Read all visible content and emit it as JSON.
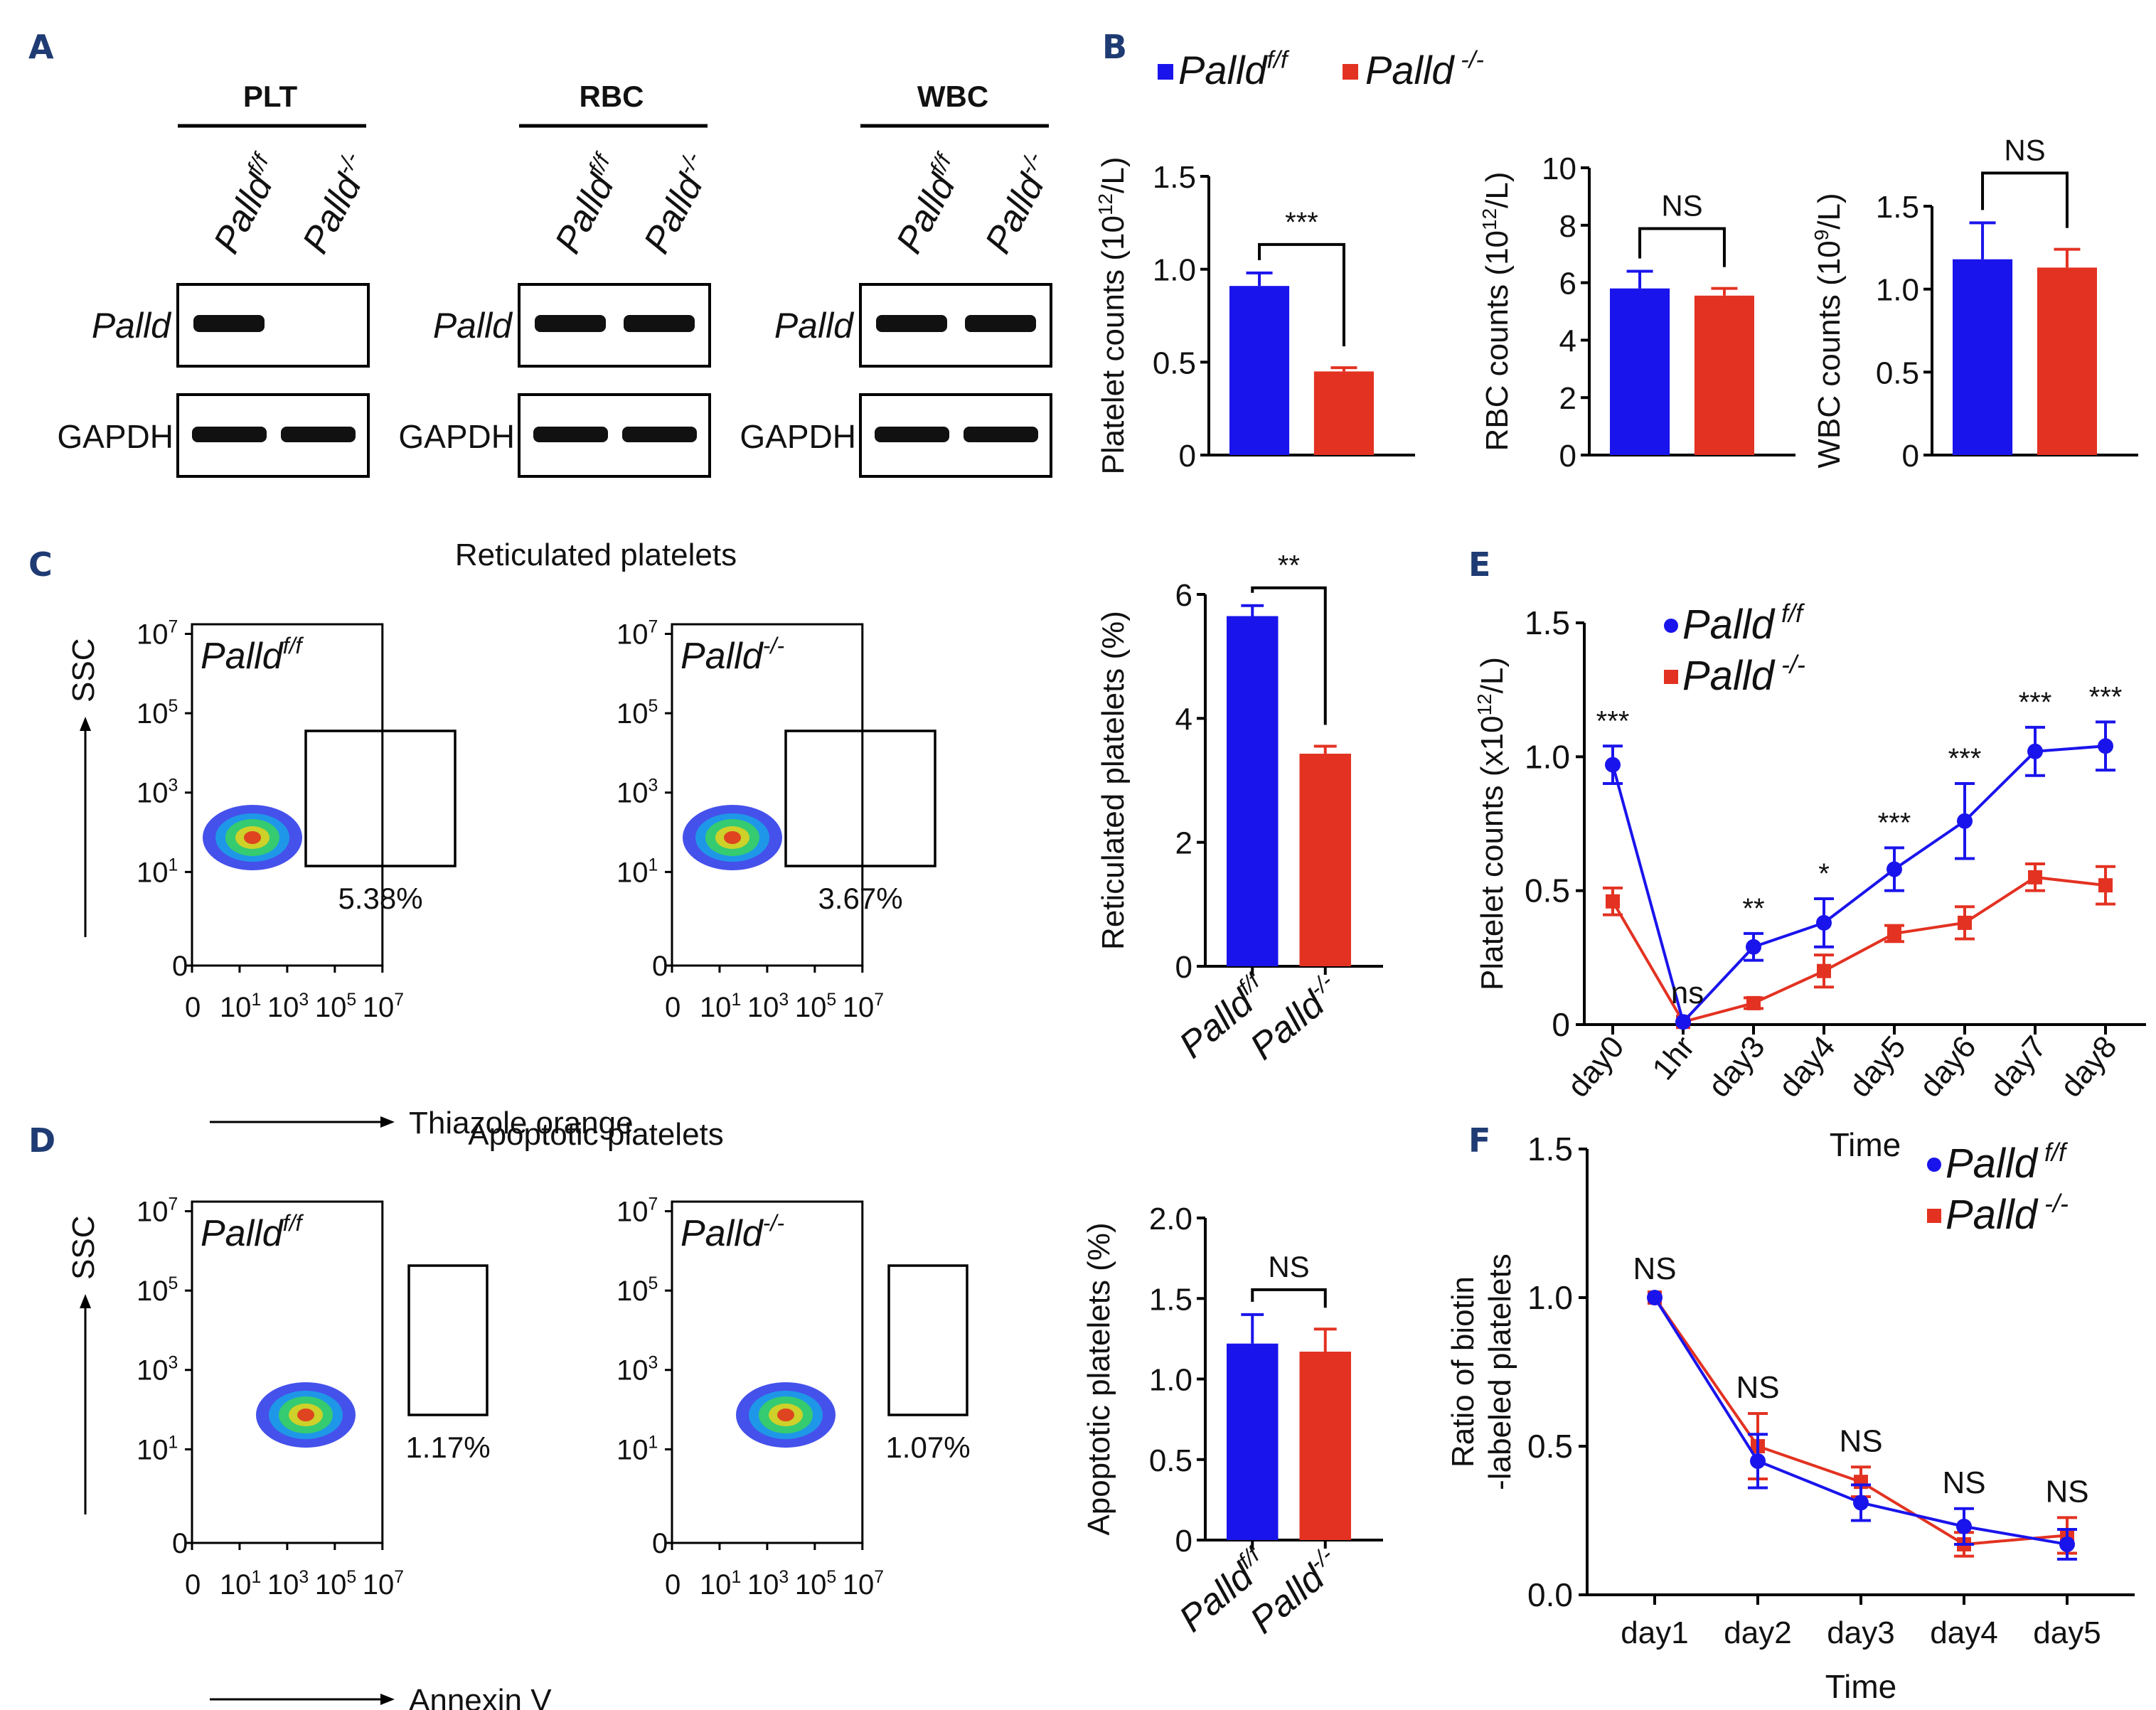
{
  "colors": {
    "palld_ff": "#1a14ec",
    "palld_ko": "#e33222",
    "panel_letter": "#1f3b73",
    "ink": "#111111"
  },
  "panels": {
    "A": {
      "letter": "A"
    },
    "B": {
      "letter": "B"
    },
    "C": {
      "letter": "C",
      "title": "Reticulated platelets"
    },
    "D": {
      "letter": "D",
      "title": "Apoptotic platelets"
    },
    "E": {
      "letter": "E"
    },
    "F": {
      "letter": "F"
    }
  },
  "genotypes": {
    "ff_base": "Palld",
    "ff_sup": "f/f",
    "ko_base": "Palld",
    "ko_sup": "-/-"
  },
  "western_blot": {
    "groups": [
      {
        "name": "PLT",
        "palld_bands": [
          1,
          0
        ],
        "gapdh_bands": [
          1,
          1
        ]
      },
      {
        "name": "RBC",
        "palld_bands": [
          1,
          1
        ],
        "gapdh_bands": [
          1,
          1
        ]
      },
      {
        "name": "WBC",
        "palld_bands": [
          1,
          1
        ],
        "gapdh_bands": [
          1,
          1
        ]
      }
    ],
    "row_labels": {
      "palld": "Palld",
      "gapdh": "GAPDH"
    }
  },
  "flow": {
    "y_label": "SSC",
    "tick_labels": [
      "0",
      "10",
      "10",
      "10",
      "10"
    ],
    "tick_exps": [
      "",
      "1",
      "3",
      "5",
      "7"
    ],
    "C": {
      "x_label": "Thiazole orange",
      "gate_ff": "5.38%",
      "gate_ko": "3.67%"
    },
    "D": {
      "x_label": "Annexin V",
      "gate_ff": "1.17%",
      "gate_ko": "1.07%"
    }
  },
  "chart_data": [
    {
      "id": "B-platelet",
      "type": "bar",
      "ylabel": "Platelet counts (10^12/L)",
      "ylabel_base": "Platelet counts (10",
      "ylabel_sup": "12",
      "ylabel_tail": "/L)",
      "categories": [
        "Palld f/f",
        "Palld -/-"
      ],
      "values": [
        0.91,
        0.45
      ],
      "errors": [
        0.07,
        0.02
      ],
      "ylim": [
        0,
        1.5
      ],
      "yticks": [
        "0",
        "0.5",
        "1.0",
        "1.5"
      ],
      "ytick_values": [
        0,
        0.5,
        1.0,
        1.5
      ],
      "significance": "***",
      "legend": [
        "Palld f/f",
        "Palld -/-"
      ],
      "legend_position": "top-left"
    },
    {
      "id": "B-rbc",
      "type": "bar",
      "ylabel": "RBC counts (10^12/L)",
      "ylabel_base": "RBC counts (10",
      "ylabel_sup": "12",
      "ylabel_tail": "/L)",
      "categories": [
        "Palld f/f",
        "Palld -/-"
      ],
      "values": [
        5.8,
        5.55
      ],
      "errors": [
        0.6,
        0.25
      ],
      "ylim": [
        0,
        10
      ],
      "yticks": [
        "0",
        "2",
        "4",
        "6",
        "8",
        "10"
      ],
      "ytick_values": [
        0,
        2,
        4,
        6,
        8,
        10
      ],
      "significance": "NS"
    },
    {
      "id": "B-wbc",
      "type": "bar",
      "ylabel": "WBC counts (10^9/L)",
      "ylabel_base": "WBC counts (10",
      "ylabel_sup": "9",
      "ylabel_tail": "/L)",
      "categories": [
        "Palld f/f",
        "Palld -/-"
      ],
      "values": [
        1.18,
        1.13
      ],
      "errors": [
        0.22,
        0.11
      ],
      "ylim": [
        0,
        1.5
      ],
      "yticks": [
        "0",
        "0.5",
        "1.0",
        "1.5"
      ],
      "ytick_values": [
        0,
        0.5,
        1.0,
        1.5
      ],
      "significance": "NS"
    },
    {
      "id": "C-reticulated",
      "type": "bar",
      "ylabel": "Reticulated platelets (%)",
      "categories": [
        "Palld f/f",
        "Palld -/-"
      ],
      "values": [
        5.65,
        3.43
      ],
      "errors": [
        0.17,
        0.12
      ],
      "ylim": [
        0,
        6
      ],
      "yticks": [
        "0",
        "2",
        "4",
        "6"
      ],
      "ytick_values": [
        0,
        2,
        4,
        6
      ],
      "significance": "**"
    },
    {
      "id": "D-apoptotic",
      "type": "bar",
      "ylabel": "Apoptotic platelets (%)",
      "categories": [
        "Palld f/f",
        "Palld -/-"
      ],
      "values": [
        1.22,
        1.17
      ],
      "errors": [
        0.18,
        0.14
      ],
      "ylim": [
        0,
        2.0
      ],
      "yticks": [
        "0",
        "0.5",
        "1.0",
        "1.5",
        "2.0"
      ],
      "ytick_values": [
        0,
        0.5,
        1.0,
        1.5,
        2.0
      ],
      "significance": "NS"
    },
    {
      "id": "E-platelet-time",
      "type": "line",
      "ylabel": "Platelet counts (x10^12/L)",
      "ylabel_base": "Platelet counts (x10",
      "ylabel_sup": "12",
      "ylabel_tail": "/L)",
      "xlabel": "Time",
      "x": [
        "day0",
        "1hr",
        "day3",
        "day4",
        "day5",
        "day6",
        "day7",
        "day8"
      ],
      "series": [
        {
          "name": "Palld f/f",
          "marker": "circle",
          "values": [
            0.97,
            0.01,
            0.29,
            0.38,
            0.58,
            0.76,
            1.02,
            1.04
          ],
          "errors": [
            0.07,
            0.01,
            0.05,
            0.09,
            0.08,
            0.14,
            0.09,
            0.09
          ]
        },
        {
          "name": "Palld -/-",
          "marker": "square",
          "values": [
            0.46,
            0.01,
            0.08,
            0.2,
            0.34,
            0.38,
            0.55,
            0.52
          ],
          "errors": [
            0.05,
            0.01,
            0.02,
            0.06,
            0.03,
            0.06,
            0.05,
            0.07
          ]
        }
      ],
      "annotations": [
        "***",
        "ns",
        "**",
        "*",
        "***",
        "***",
        "***",
        "***"
      ],
      "ylim": [
        0,
        1.5
      ],
      "yticks": [
        "0",
        "0.5",
        "1.0",
        "1.5"
      ],
      "ytick_values": [
        0,
        0.5,
        1.0,
        1.5
      ],
      "legend_position": "top-left"
    },
    {
      "id": "F-biotin",
      "type": "line",
      "ylabel": "Ratio of biotin -labeled platelets",
      "ylabel_line1": "Ratio of biotin",
      "ylabel_line2": "-labeled platelets",
      "xlabel": "Time",
      "x": [
        "day1",
        "day2",
        "day3",
        "day4",
        "day5"
      ],
      "series": [
        {
          "name": "Palld f/f",
          "marker": "circle",
          "values": [
            1.0,
            0.45,
            0.31,
            0.23,
            0.17
          ],
          "errors": [
            0.01,
            0.09,
            0.06,
            0.06,
            0.05
          ]
        },
        {
          "name": "Palld -/-",
          "marker": "square",
          "values": [
            1.0,
            0.5,
            0.38,
            0.17,
            0.2
          ],
          "errors": [
            0.01,
            0.11,
            0.05,
            0.04,
            0.06
          ]
        }
      ],
      "annotations": [
        "NS",
        "NS",
        "NS",
        "NS",
        "NS"
      ],
      "ylim": [
        0,
        1.5
      ],
      "yticks": [
        "0.0",
        "0.5",
        "1.0",
        "1.5"
      ],
      "ytick_values": [
        0,
        0.5,
        1.0,
        1.5
      ],
      "legend_position": "top-right"
    }
  ]
}
